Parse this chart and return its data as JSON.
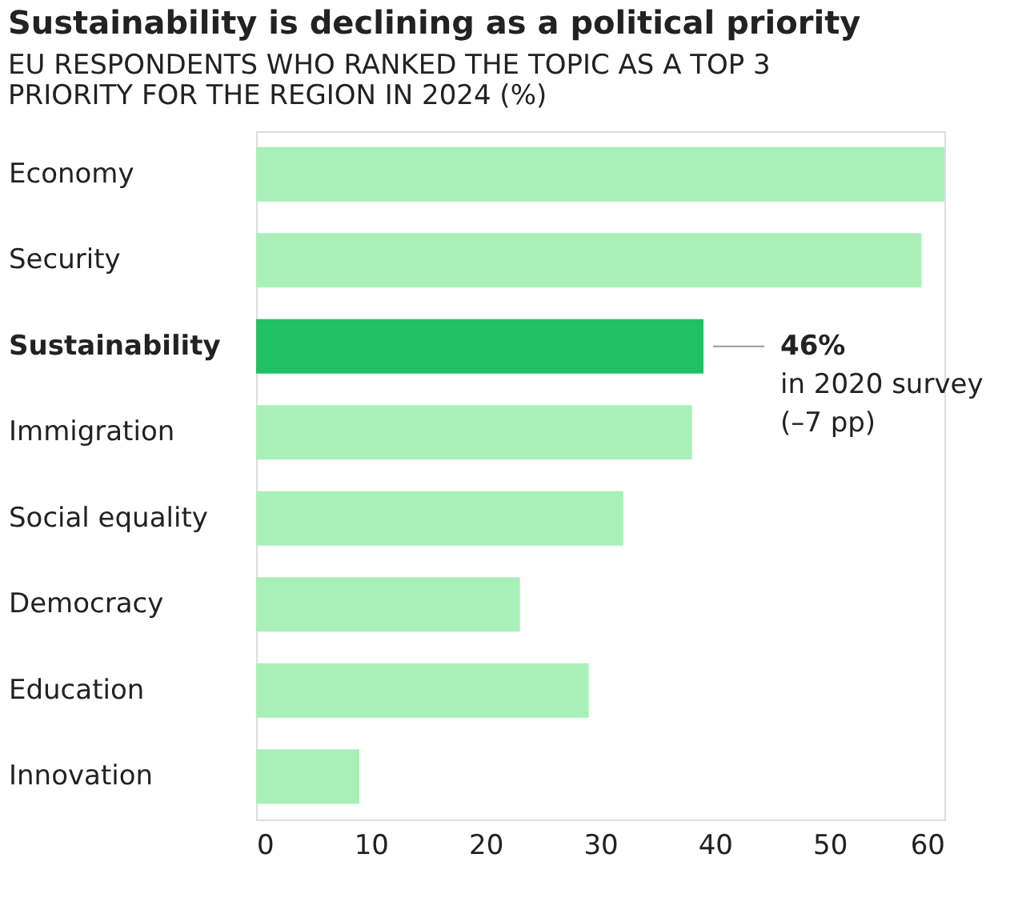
{
  "chart_data": {
    "type": "bar",
    "orientation": "horizontal",
    "title": "Sustainability is declining as a political priority",
    "subtitle": "EU RESPONDENTS WHO RANKED THE TOPIC AS A TOP 3\nPRIORITY FOR THE REGION IN 2024 (%)",
    "categories": [
      "Economy",
      "Security",
      "Sustainability",
      "Immigration",
      "Social equality",
      "Democracy",
      "Education",
      "Innovation"
    ],
    "values": [
      60,
      58,
      39,
      38,
      32,
      23,
      29,
      9
    ],
    "colors": [
      "#a8f0b8",
      "#a8f0b8",
      "#22c064",
      "#a8f0b8",
      "#a8f0b8",
      "#a8f0b8",
      "#a8f0b8",
      "#a8f0b8"
    ],
    "xlim": [
      0,
      60
    ],
    "xticks": [
      0,
      10,
      20,
      30,
      40,
      50,
      60
    ],
    "grid": false,
    "annotations": [
      "46%",
      "in 2020 survey",
      "(–7 pp)"
    ]
  }
}
